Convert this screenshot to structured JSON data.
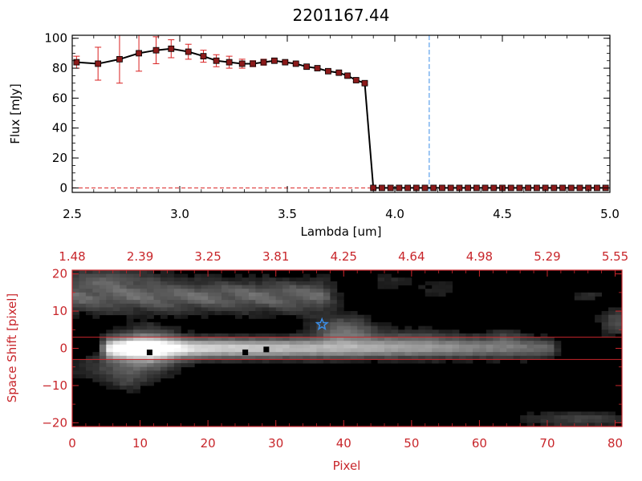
{
  "chart_data": [
    {
      "type": "line",
      "title": "2201167.44",
      "xlabel": "Lambda [um]",
      "ylabel": "Flux [mJy]",
      "xlim": [
        2.5,
        5.0
      ],
      "ylim": [
        -3,
        102
      ],
      "x_ticks": [
        "2.5",
        "3.0",
        "3.5",
        "4.0",
        "4.5",
        "5.0"
      ],
      "y_ticks": [
        "0",
        "20",
        "40",
        "60",
        "80",
        "100"
      ],
      "marker_color": "#8b1a1a",
      "errorbar_color": "#d92020",
      "line_color": "#000000",
      "vline": {
        "x": 4.16,
        "color": "#3b8ee8",
        "style": "dashed"
      },
      "hline": {
        "y": 0,
        "color": "#d92020",
        "style": "dashed"
      },
      "series": [
        {
          "x": [
            2.52,
            2.62,
            2.72,
            2.81,
            2.89,
            2.96,
            3.04,
            3.11,
            3.17,
            3.23,
            3.29,
            3.34,
            3.39,
            3.44,
            3.49,
            3.54,
            3.59,
            3.64,
            3.69,
            3.74,
            3.78,
            3.82,
            3.86,
            3.9,
            3.94,
            3.98,
            4.02,
            4.06,
            4.1,
            4.14,
            4.18,
            4.22,
            4.26,
            4.3,
            4.34,
            4.38,
            4.42,
            4.46,
            4.5,
            4.54,
            4.58,
            4.62,
            4.66,
            4.7,
            4.74,
            4.78,
            4.82,
            4.86,
            4.9,
            4.94,
            4.98
          ],
          "y": [
            84,
            83,
            86,
            90,
            92,
            93,
            91,
            88,
            85,
            84,
            83,
            83,
            84,
            85,
            84,
            83,
            81,
            80,
            78,
            77,
            75,
            72,
            70,
            0,
            0,
            0,
            0,
            0,
            0,
            0,
            0,
            0,
            0,
            0,
            0,
            0,
            0,
            0,
            0,
            0,
            0,
            0,
            0,
            0,
            0,
            0,
            0,
            0,
            0,
            0,
            0
          ],
          "err": [
            4,
            11,
            16,
            12,
            9,
            6,
            5,
            4,
            4,
            4,
            3,
            2,
            2,
            1,
            1,
            1,
            1,
            1,
            1,
            1,
            1,
            1,
            1,
            0,
            0,
            0,
            0,
            0,
            0,
            0,
            0,
            0,
            0,
            0,
            0,
            0,
            0,
            0,
            0,
            0,
            0,
            0,
            0,
            0,
            0,
            0,
            0,
            0,
            0,
            0,
            0
          ]
        }
      ]
    },
    {
      "type": "heatmap",
      "xlabel": "Pixel",
      "ylabel": "Space Shift [pixel]",
      "xlim": [
        0,
        81
      ],
      "ylim": [
        -21,
        21
      ],
      "x_ticks": [
        "0",
        "10",
        "20",
        "30",
        "40",
        "50",
        "60",
        "70",
        "80"
      ],
      "y_ticks": [
        "−20",
        "−10",
        "0",
        "10",
        "20"
      ],
      "top_ticks": [
        "1.48",
        "2.39",
        "3.25",
        "3.81",
        "4.25",
        "4.64",
        "4.98",
        "5.29",
        "5.55"
      ],
      "axis_color": "#c8262b",
      "aperture_lines": [
        3,
        -3
      ],
      "star_marker": {
        "x": 36.8,
        "y": 6.4,
        "color": "#3b8ee8"
      },
      "black_markers": [
        {
          "x": 11.4,
          "y": -1.1
        },
        {
          "x": 25.5,
          "y": -1.1
        },
        {
          "x": 28.6,
          "y": -0.3
        }
      ],
      "nx": 81,
      "ny": 42,
      "components": [
        {
          "type": "trace",
          "x0": 6,
          "x1": 70,
          "yc": 0,
          "sy": 1.8,
          "amp0": 0.95,
          "amp1": 0.35
        },
        {
          "type": "blob",
          "x": 11,
          "y": 0,
          "sx": 3.0,
          "sy": 3.5,
          "amp": 0.5
        },
        {
          "type": "blob",
          "x": 40,
          "y": 5,
          "sx": 3.0,
          "sy": 2.5,
          "amp": 0.35
        },
        {
          "type": "blob",
          "x": 50,
          "y": 3,
          "sx": 6.0,
          "sy": 2.0,
          "amp": 0.15
        },
        {
          "type": "blob",
          "x": 64,
          "y": 3,
          "sx": 2.0,
          "sy": 1.5,
          "amp": 0.15
        },
        {
          "type": "blob",
          "x": 7,
          "y": -5,
          "sx": 5.0,
          "sy": 2.5,
          "amp": 0.2
        },
        {
          "type": "blob",
          "x": 8,
          "y": -9,
          "sx": 2.0,
          "sy": 2.0,
          "amp": 0.15
        },
        {
          "type": "band",
          "x0": 0,
          "x1": 36,
          "yc": 14,
          "sy": 3.0,
          "amp": 0.38
        },
        {
          "type": "blob",
          "x": 5,
          "y": 19,
          "sx": 5.0,
          "sy": 2.0,
          "amp": 0.2
        },
        {
          "type": "blob",
          "x": 75,
          "y": -19,
          "sx": 6.0,
          "sy": 1.5,
          "amp": 0.2
        },
        {
          "type": "blob",
          "x": 80,
          "y": 7,
          "sx": 1.5,
          "sy": 2.5,
          "amp": 0.25
        },
        {
          "type": "blob",
          "x": 54,
          "y": 16,
          "sx": 2.5,
          "sy": 1.5,
          "amp": 0.1
        },
        {
          "type": "blob",
          "x": 76,
          "y": 14,
          "sx": 1.5,
          "sy": 1.0,
          "amp": 0.15
        },
        {
          "type": "blob",
          "x": 47,
          "y": 18,
          "sx": 2.5,
          "sy": 1.5,
          "amp": 0.1
        }
      ]
    }
  ]
}
